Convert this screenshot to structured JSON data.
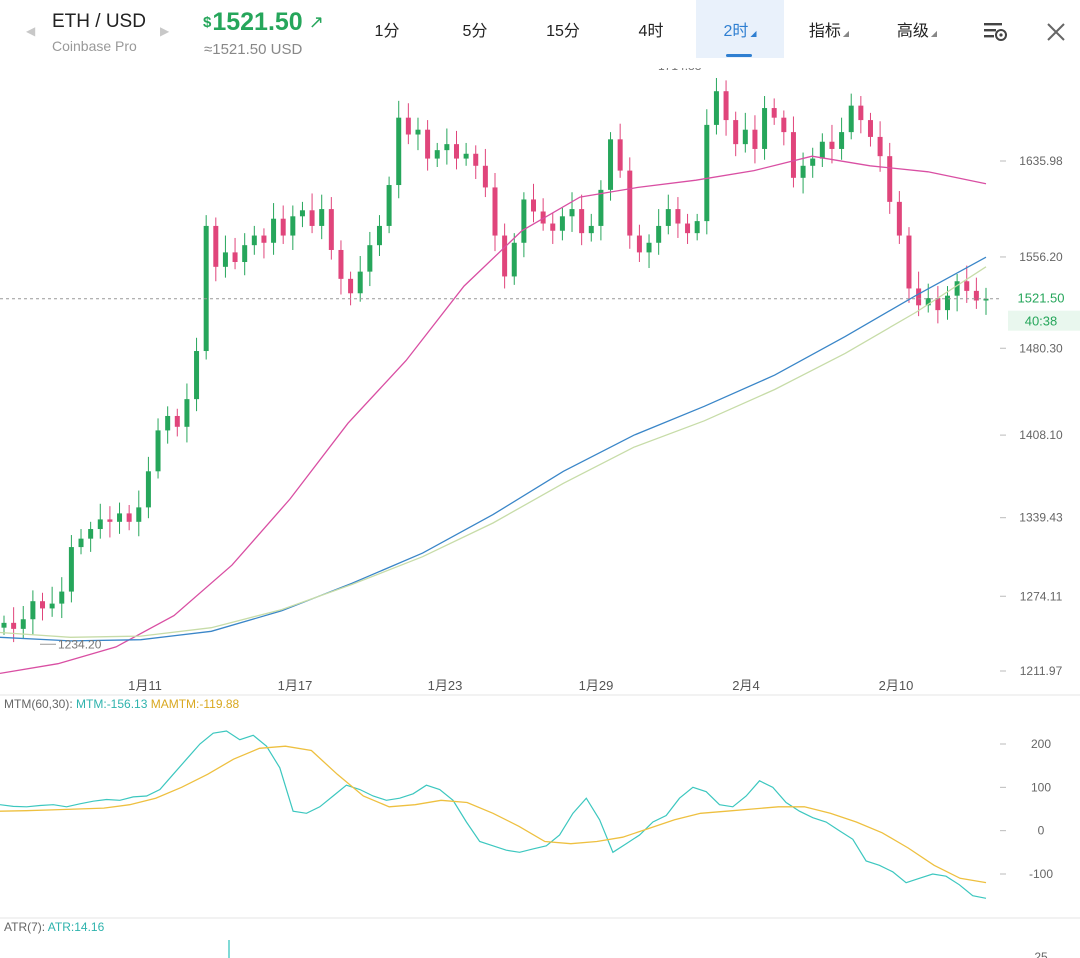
{
  "header": {
    "pair": "ETH / USD",
    "exchange": "Coinbase Pro",
    "currency_symbol": "$",
    "price": "1521.50",
    "converted": "≈1521.50 USD",
    "up_arrow": "↗",
    "prev_symbol": "◀",
    "next_symbol": "▶"
  },
  "timeframes": [
    {
      "label": "1分"
    },
    {
      "label": "5分"
    },
    {
      "label": "15分"
    },
    {
      "label": "4时"
    },
    {
      "label": "2时",
      "active": true
    },
    {
      "label": "指标"
    },
    {
      "label": "高级"
    }
  ],
  "icons": {
    "settings": "chart-settings-icon",
    "close": "close-icon"
  },
  "colors": {
    "up": "#26a65b",
    "down": "#e0457b",
    "accent": "#2f7fd1",
    "ma_pink": "#d94fa3",
    "ma_blue": "#3a86c8",
    "ma_green": "#c7dca8",
    "mtm": "#3cc7bf",
    "mamtm": "#eec040"
  },
  "chart_data": [
    {
      "type": "candlestick",
      "title": "ETH / USD 2时",
      "x_tick_labels": [
        "1月11",
        "1月17",
        "1月23",
        "1月29",
        "2月4",
        "2月10"
      ],
      "y_tick_labels": [
        "1635.98",
        "1556.20",
        "1480.30",
        "1408.10",
        "1339.43",
        "1274.11",
        "1211.97"
      ],
      "ylim": [
        1195,
        1730
      ],
      "high_marker": "1714.83",
      "low_marker": "1234.20",
      "last_price": "1521.50",
      "countdown": "40:38",
      "series": [
        {
          "name": "price",
          "values": [
            1252,
            1247,
            1255,
            1270,
            1264,
            1268,
            1278,
            1315,
            1322,
            1330,
            1338,
            1336,
            1343,
            1336,
            1348,
            1378,
            1412,
            1424,
            1415,
            1438,
            1478,
            1582,
            1548,
            1560,
            1552,
            1566,
            1574,
            1568,
            1588,
            1574,
            1590,
            1595,
            1582,
            1596,
            1562,
            1538,
            1526,
            1544,
            1566,
            1582,
            1616,
            1672,
            1658,
            1662,
            1638,
            1645,
            1650,
            1638,
            1642,
            1632,
            1614,
            1574,
            1540,
            1568,
            1604,
            1594,
            1584,
            1578,
            1590,
            1596,
            1576,
            1582,
            1612,
            1654,
            1628,
            1574,
            1560,
            1568,
            1582,
            1596,
            1584,
            1576,
            1586,
            1666,
            1694,
            1670,
            1650,
            1662,
            1646,
            1680,
            1672,
            1660,
            1622,
            1632,
            1638,
            1652,
            1646,
            1660,
            1682,
            1670,
            1656,
            1640,
            1602,
            1574,
            1530,
            1516,
            1522,
            1512,
            1524,
            1536,
            1528,
            1520,
            1521.5
          ]
        },
        {
          "name": "MA slow",
          "values": [
            1210,
            1218,
            1232,
            1258,
            1300,
            1355,
            1418,
            1470,
            1532,
            1578,
            1606,
            1614,
            1620,
            1628,
            1640,
            1632,
            1627,
            1617
          ]
        },
        {
          "name": "MA 200",
          "values": [
            1240,
            1237,
            1238,
            1245,
            1262,
            1285,
            1310,
            1342,
            1378,
            1408,
            1432,
            1458,
            1490,
            1524,
            1556
          ]
        },
        {
          "name": "MA 250",
          "values": [
            1244,
            1240,
            1241,
            1248,
            1263,
            1284,
            1307,
            1335,
            1368,
            1398,
            1420,
            1446,
            1476,
            1510,
            1548
          ]
        }
      ]
    },
    {
      "type": "line",
      "label": "MTM(60,30):",
      "series_labels": [
        "MTM:-156.13",
        "MAMTM:-119.88"
      ],
      "y_tick_labels": [
        "200",
        "100",
        "0",
        "-100"
      ],
      "ylim": [
        -180,
        280
      ],
      "series": [
        {
          "name": "MTM",
          "values": [
            60,
            56,
            55,
            58,
            60,
            55,
            62,
            68,
            72,
            70,
            78,
            80,
            95,
            130,
            165,
            200,
            225,
            230,
            210,
            220,
            195,
            145,
            45,
            40,
            55,
            80,
            105,
            95,
            80,
            70,
            75,
            85,
            105,
            95,
            70,
            20,
            -25,
            -35,
            -45,
            -50,
            -42,
            -35,
            -10,
            40,
            75,
            25,
            -50,
            -30,
            -10,
            20,
            35,
            75,
            100,
            90,
            60,
            55,
            80,
            115,
            100,
            65,
            45,
            30,
            20,
            0,
            -20,
            -70,
            -80,
            -95,
            -120,
            -110,
            -100,
            -105,
            -125,
            -150,
            -156.13
          ]
        },
        {
          "name": "MAMTM",
          "values": [
            45,
            46,
            48,
            50,
            52,
            60,
            75,
            100,
            130,
            165,
            190,
            195,
            185,
            130,
            80,
            55,
            60,
            70,
            65,
            40,
            10,
            -25,
            -30,
            -25,
            -15,
            5,
            25,
            40,
            45,
            50,
            55,
            55,
            40,
            20,
            -5,
            -40,
            -80,
            -110,
            -119.88
          ]
        }
      ]
    },
    {
      "type": "line",
      "label": "ATR(7):",
      "series_labels": [
        "ATR:14.16"
      ],
      "y_tick_labels": [
        "25"
      ],
      "series": [
        {
          "name": "ATR",
          "values": [
            14.16
          ]
        }
      ]
    }
  ]
}
